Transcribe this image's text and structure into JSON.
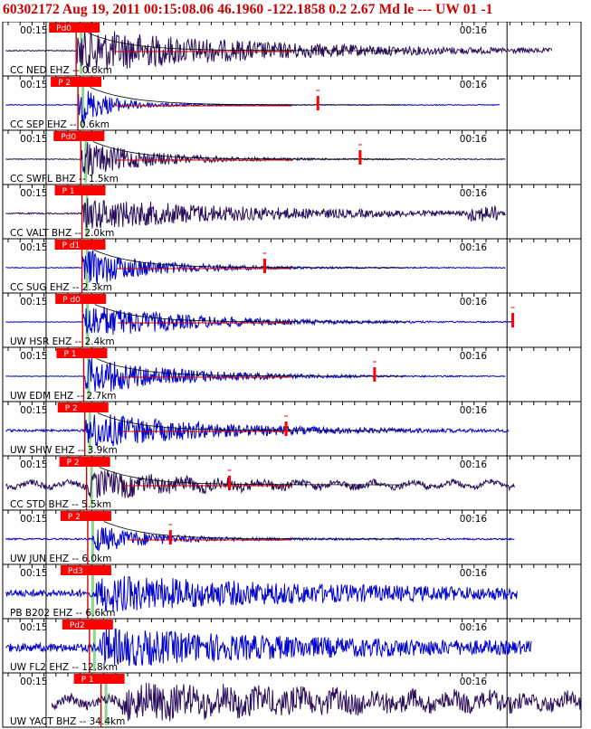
{
  "header": {
    "title": "60302172  Aug 19, 2011 00:15:08.06    46.1960 -122.1858   0.2 2.67 Md le ---  UW 01   -1"
  },
  "colors": {
    "header_text": "#cc0000",
    "frame": "#000000",
    "ticks": "#000000",
    "trace_blue": "#0000cc",
    "trace_dark": "#2a0d5a",
    "pick_box": "#ff0000",
    "pick_line": "#cc0000",
    "pick_text": "#ffffff",
    "predicted_band": "#8fd68f",
    "decay_curve": "#000000"
  },
  "time_labels": {
    "left": "00:15",
    "right": "00:16"
  },
  "traces": [
    {
      "station_label": "CC NED EHZ -- 0.6km",
      "pick_label": "Pd0",
      "color": "dark",
      "pick_pos": 0.127,
      "onset": 0.128,
      "coda": 0.95,
      "amp": 1.0,
      "noise": 0.04,
      "decay": 0.32,
      "mark": null,
      "curve": true
    },
    {
      "station_label": "CC SEP EHZ -- 0.6km",
      "pick_label": "P 2",
      "color": "blue",
      "pick_pos": 0.13,
      "onset": 0.131,
      "coda": 0.86,
      "amp": 0.85,
      "noise": 0.03,
      "decay": 0.06,
      "mark": 0.545,
      "curve": true
    },
    {
      "station_label": "CC SWFL BHZ -- 1.5km",
      "pick_label": "Pd0",
      "color": "dark",
      "pick_pos": 0.135,
      "onset": 0.136,
      "coda": 0.87,
      "amp": 0.8,
      "noise": 0.03,
      "decay": 0.12,
      "mark": 0.618,
      "curve": true
    },
    {
      "station_label": "CC VALT BHZ -- 2.0km",
      "pick_label": "P 1",
      "color": "dark",
      "pick_pos": 0.137,
      "onset": 0.138,
      "coda": 0.87,
      "amp": 0.7,
      "noise": 0.05,
      "decay": 0.3,
      "mark": null,
      "curve": false,
      "burst": 0.83
    },
    {
      "station_label": "CC SUG EHZ -- 2.3km",
      "pick_label": "P d1",
      "color": "blue",
      "pick_pos": 0.137,
      "onset": 0.138,
      "coda": 0.87,
      "amp": 0.85,
      "noise": 0.03,
      "decay": 0.12,
      "mark": 0.453,
      "curve": true
    },
    {
      "station_label": "UW HSR EHZ -- 2.4km",
      "pick_label": "P d0",
      "color": "blue",
      "pick_pos": 0.138,
      "onset": 0.139,
      "coda": 0.885,
      "amp": 0.8,
      "noise": 0.02,
      "decay": 0.18,
      "mark": 0.882,
      "curve": true
    },
    {
      "station_label": "UW EDM EHZ -- 2.7km",
      "pick_label": "P 1",
      "color": "blue",
      "pick_pos": 0.14,
      "onset": 0.142,
      "coda": 0.87,
      "amp": 0.85,
      "noise": 0.02,
      "decay": 0.16,
      "mark": 0.643,
      "curve": true
    },
    {
      "station_label": "UW SHW EHZ -- 3.9km",
      "pick_label": "P 2",
      "color": "blue",
      "pick_pos": 0.142,
      "onset": 0.144,
      "coda": 0.875,
      "amp": 0.8,
      "noise": 0.08,
      "decay": 0.2,
      "mark": 0.49,
      "curve": true
    },
    {
      "station_label": "CC STD BHZ -- 5.5km",
      "pick_label": "P 2",
      "color": "dark",
      "pick_pos": 0.145,
      "onset": 0.147,
      "coda": 0.885,
      "amp": 0.55,
      "noise": 0.2,
      "decay": 0.15,
      "mark": 0.392,
      "curve": true,
      "wave": 0.25
    },
    {
      "station_label": "UW JUN EHZ -- 6.0km",
      "pick_label": "P 2",
      "color": "blue",
      "pick_pos": 0.147,
      "onset": 0.155,
      "coda": 0.885,
      "amp": 0.6,
      "noise": 0.06,
      "decay": 0.1,
      "mark": 0.29,
      "curve": true
    },
    {
      "station_label": "PB B202 EHZ -- 6.6km",
      "pick_label": "Pd3",
      "color": "blue",
      "pick_pos": 0.147,
      "onset": 0.16,
      "coda": 0.89,
      "amp": 0.7,
      "noise": 0.25,
      "decay": 0.4,
      "mark": null,
      "curve": false
    },
    {
      "station_label": "UW FL2 EHZ -- 12.8km",
      "pick_label": "Pd2",
      "color": "blue",
      "pick_pos": 0.15,
      "onset": 0.165,
      "coda": 0.915,
      "amp": 0.7,
      "noise": 0.3,
      "decay": 0.4,
      "mark": null,
      "curve": false
    },
    {
      "station_label": "UW YACT BHZ -- 34.4km",
      "pick_label": "P 1",
      "color": "dark",
      "pick_pos": 0.17,
      "onset": 0.205,
      "coda": 1.0,
      "amp": 0.6,
      "noise": 0.35,
      "decay": 0.5,
      "mark": null,
      "curve": false,
      "wave": 0.35,
      "start": 0.085
    }
  ]
}
